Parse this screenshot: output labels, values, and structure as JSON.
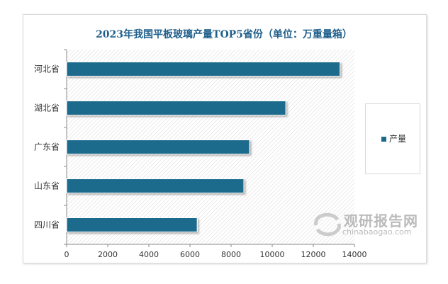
{
  "chart_data": {
    "type": "bar",
    "orientation": "horizontal",
    "title": "2023年我国平板玻璃产量TOP5省份（单位：万重量箱）",
    "categories": [
      "河北省",
      "湖北省",
      "广东省",
      "山东省",
      "四川省"
    ],
    "series": [
      {
        "name": "产量",
        "values": [
          13300,
          10660,
          8900,
          8620,
          6350
        ],
        "color": "#1b6a8c"
      }
    ],
    "xlim": [
      0,
      14000
    ],
    "xticks": [
      "0",
      "2000",
      "4000",
      "6000",
      "8000",
      "10000",
      "12000",
      "14000"
    ],
    "grid": false,
    "legend": "right",
    "background": "diagonal-hatch"
  },
  "watermark": {
    "cn": "观研报告网",
    "en": "chinabaogao.com"
  }
}
